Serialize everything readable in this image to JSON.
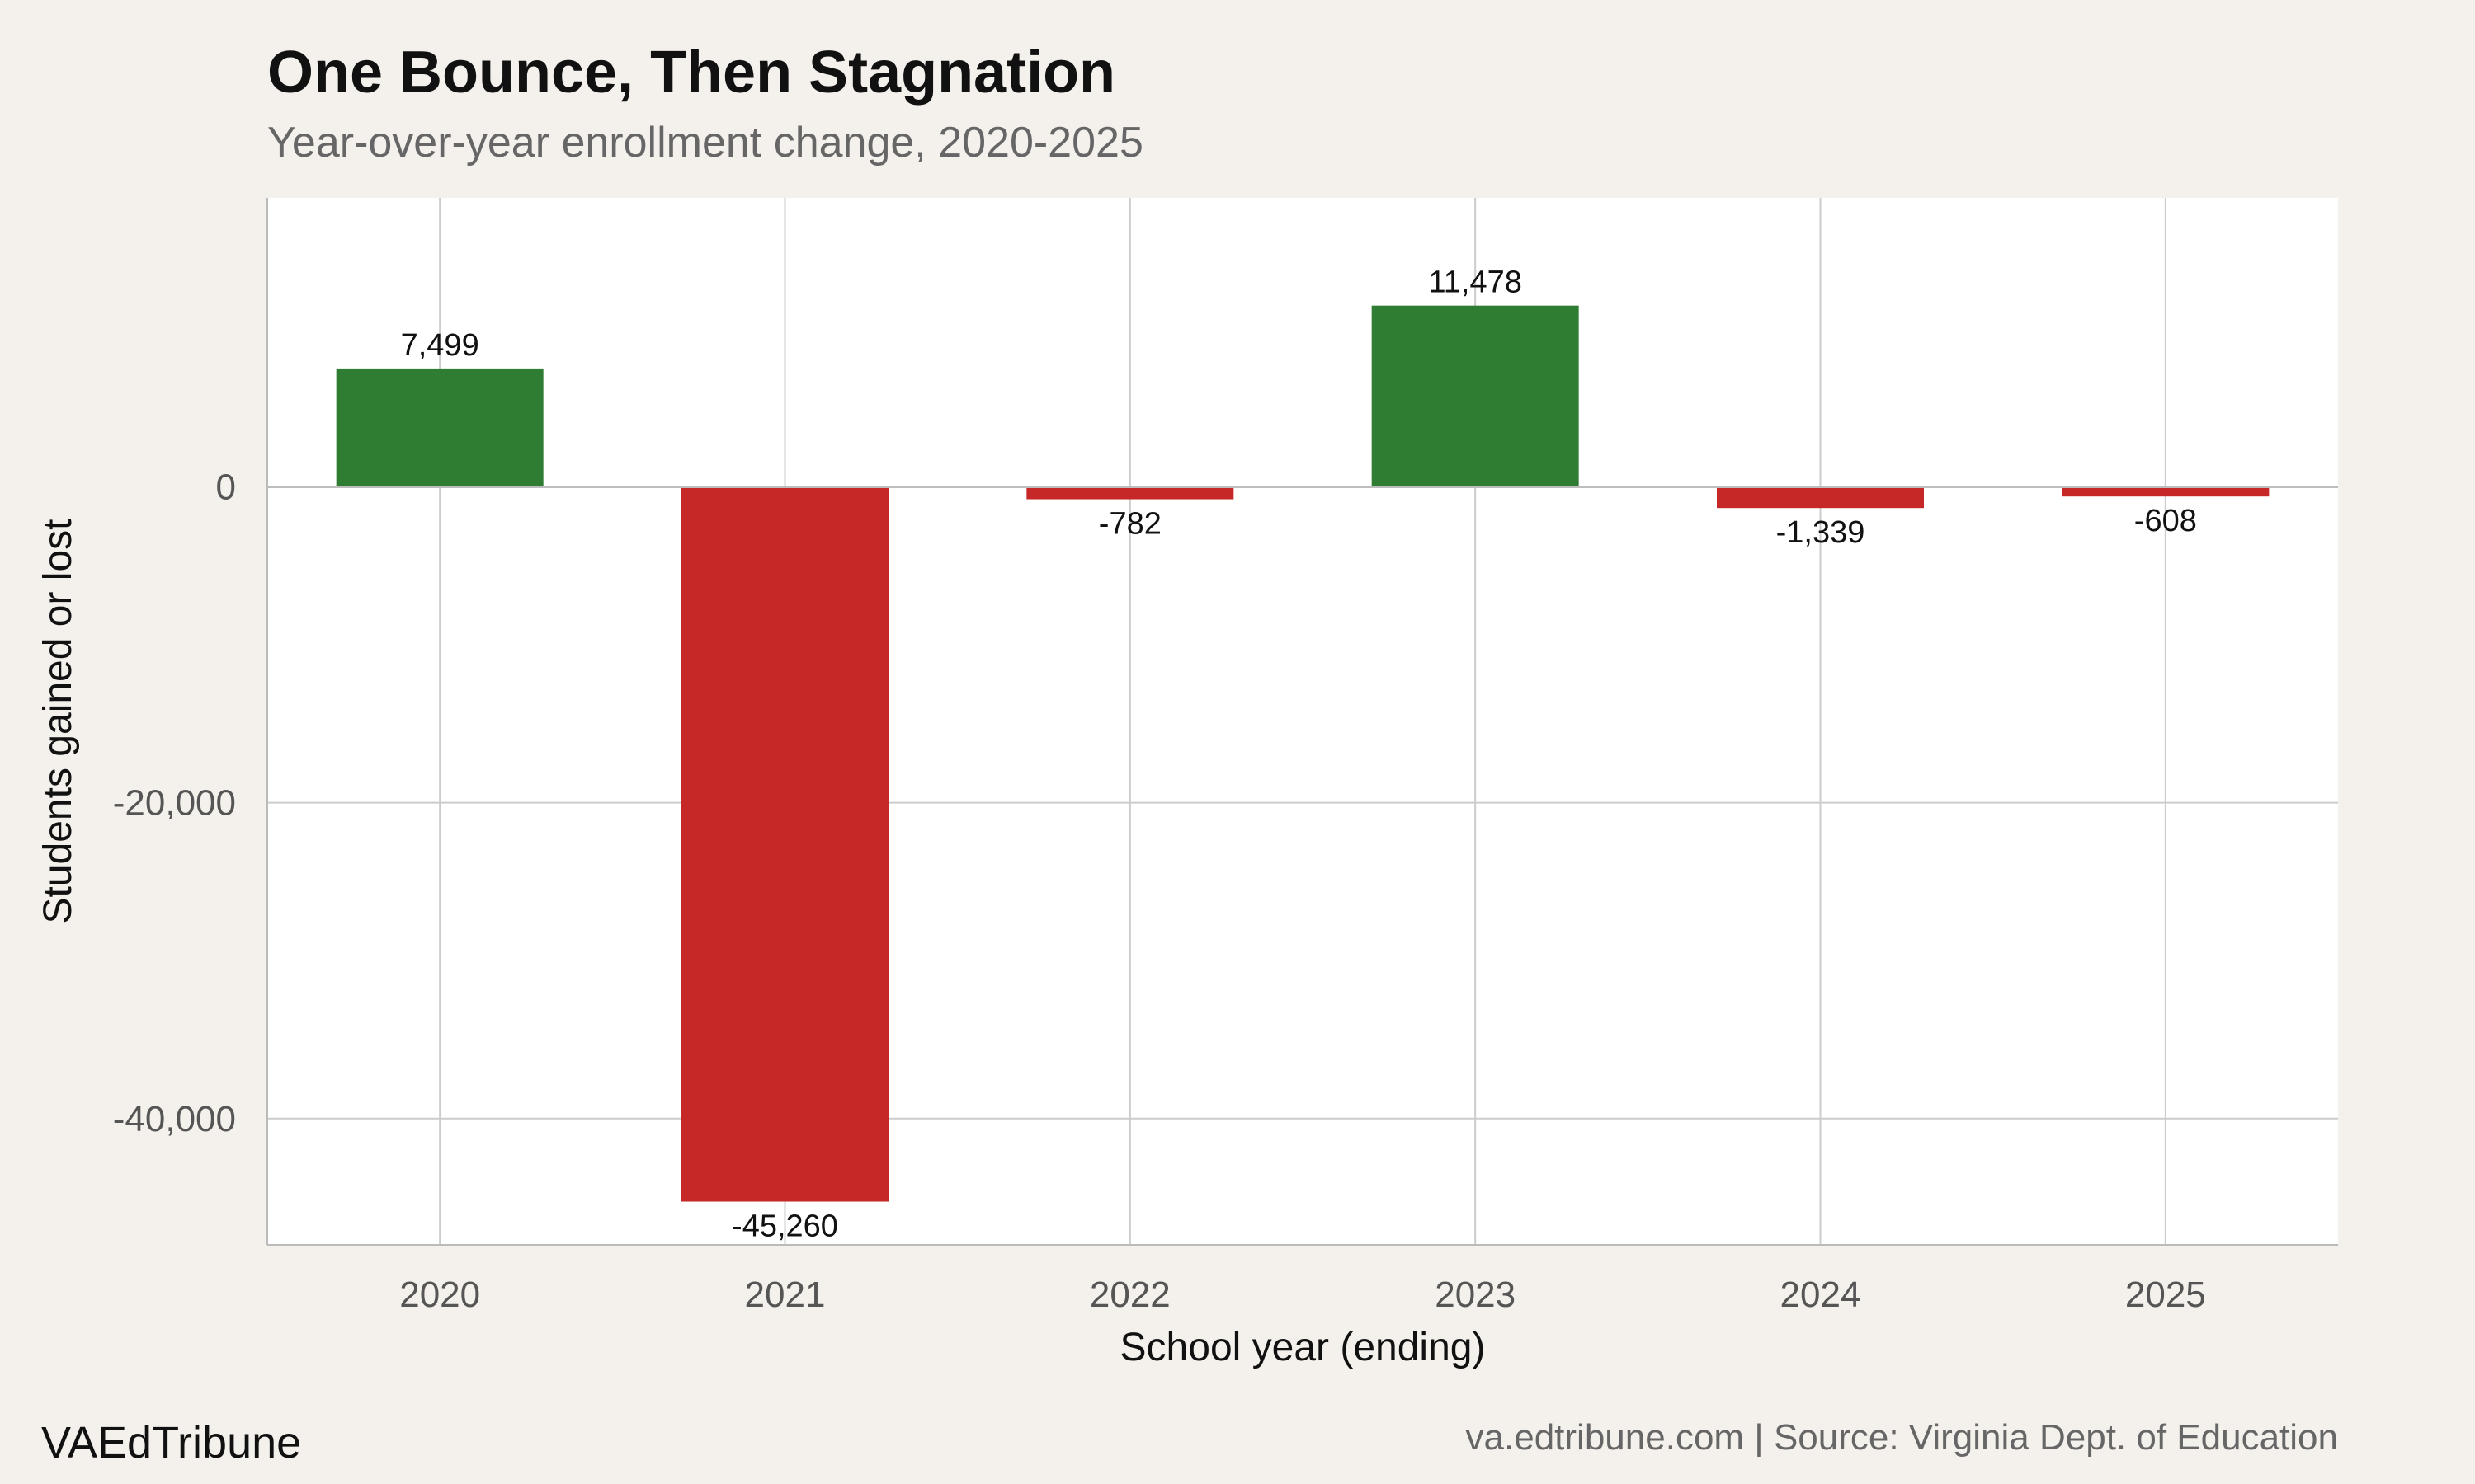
{
  "chart_data": {
    "type": "bar",
    "title": "One Bounce, Then Stagnation",
    "subtitle": "Year-over-year enrollment change, 2020-2025",
    "xlabel": "School year (ending)",
    "ylabel": "Students gained or lost",
    "categories": [
      "2020",
      "2021",
      "2022",
      "2023",
      "2024",
      "2025"
    ],
    "values": [
      7499,
      -45260,
      -782,
      11478,
      -1339,
      -608
    ],
    "value_labels": [
      "7,499",
      "-45,260",
      "-782",
      "11,478",
      "-1,339",
      "-608"
    ],
    "ylim": [
      -48000,
      18300
    ],
    "yticks": [
      0,
      -20000,
      -40000
    ],
    "ytick_labels": [
      "0",
      "-20,000",
      "-40,000"
    ],
    "grid": true,
    "legend": "none",
    "colors": {
      "positive": "#2e7d32",
      "negative": "#c62828",
      "panel": "#ffffff",
      "background": "#f4f1ec",
      "grid": "#cccccc",
      "zero_line": "#bdbdbd"
    }
  },
  "footer": {
    "brand": "VAEdTribune",
    "source": "va.edtribune.com | Source: Virginia Dept. of Education"
  }
}
